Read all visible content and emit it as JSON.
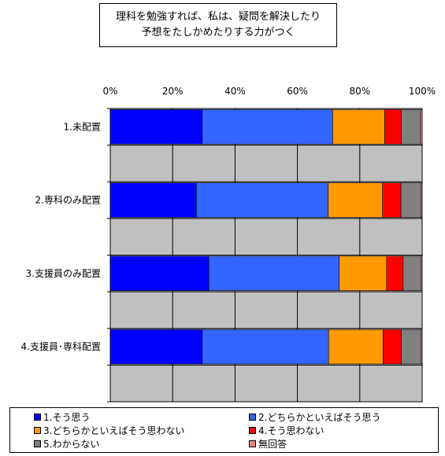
{
  "title": {
    "line1": "理科を勉強すれば、私は、疑問を解決したり",
    "line2": "予想をたしかめたりする力がつく"
  },
  "chart_data": {
    "type": "bar",
    "orientation": "horizontal",
    "stacked": "percent",
    "categories": [
      "1.未配置",
      "2.専科のみ配置",
      "3.支援員のみ配置",
      "4.支援員･専科配置"
    ],
    "x_ticks": [
      "0%",
      "20%",
      "40%",
      "60%",
      "80%",
      "100%"
    ],
    "xlim": [
      0,
      100
    ],
    "grid": true,
    "legend_position": "bottom",
    "series": [
      {
        "name": "1.そう思う",
        "color": "#0000FF",
        "values": [
          29.5,
          27.6,
          31.6,
          29.5
        ]
      },
      {
        "name": "2.どちらかといえばそう思う",
        "color": "#3366FF",
        "values": [
          41.8,
          42.3,
          41.8,
          40.5
        ]
      },
      {
        "name": "3.どちらかといえばそう思わない",
        "color": "#FF9900",
        "values": [
          16.7,
          17.4,
          15.2,
          17.5
        ]
      },
      {
        "name": "4.そう思わない",
        "color": "#FF0000",
        "values": [
          5.3,
          5.9,
          5.3,
          5.8
        ]
      },
      {
        "name": "5.わからない",
        "color": "#808080",
        "values": [
          6.2,
          6.5,
          5.8,
          6.4
        ]
      },
      {
        "name": "無回答",
        "color": "#FF8080",
        "values": [
          0.5,
          0.3,
          0.3,
          0.3
        ]
      }
    ]
  }
}
